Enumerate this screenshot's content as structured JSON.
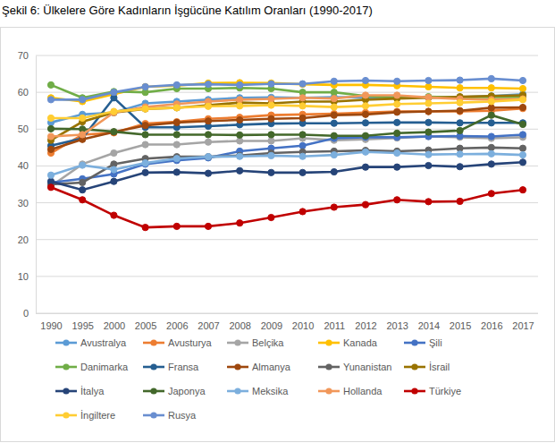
{
  "chart_data": {
    "type": "line",
    "title": "Şekil 6: Ülkelere Göre Kadınların İşgücüne Katılım Oranları (1990-2017)",
    "categories": [
      "1990",
      "1995",
      "2000",
      "2005",
      "2006",
      "2007",
      "2008",
      "2009",
      "2010",
      "2011",
      "2012",
      "2013",
      "2014",
      "2015",
      "2016",
      "2017"
    ],
    "ylim": [
      0,
      70
    ],
    "yticks": [
      0,
      10,
      20,
      30,
      40,
      50,
      60,
      70
    ],
    "grid": true,
    "legend": "bottom",
    "marker": "circle",
    "series": [
      {
        "name": "Avustralya",
        "color": "#5B9BD5",
        "values": [
          51.8,
          54.0,
          54.5,
          57.0,
          57.5,
          58.0,
          58.5,
          58.6,
          58.5,
          58.7,
          58.6,
          58.8,
          58.6,
          58.7,
          59.0,
          59.5
        ]
      },
      {
        "name": "Avusturya",
        "color": "#ED7D31",
        "values": [
          43.5,
          48.5,
          49.0,
          51.5,
          52.0,
          52.8,
          53.2,
          53.8,
          54.0,
          54.2,
          54.5,
          54.8,
          54.8,
          54.8,
          55.0,
          55.6
        ]
      },
      {
        "name": "Belçika",
        "color": "#A5A5A5",
        "values": [
          34.5,
          40.5,
          43.5,
          45.8,
          45.8,
          46.5,
          46.8,
          46.8,
          47.5,
          47.0,
          47.2,
          47.6,
          48.0,
          47.8,
          47.5,
          47.8
        ]
      },
      {
        "name": "Kanada",
        "color": "#FFC000",
        "values": [
          58.5,
          57.5,
          59.5,
          61.5,
          61.8,
          62.5,
          62.6,
          62.5,
          62.2,
          62.0,
          62.0,
          61.8,
          61.5,
          61.2,
          61.2,
          61.0
        ]
      },
      {
        "name": "Şili",
        "color": "#4472C4",
        "values": [
          35.5,
          36.5,
          37.8,
          40.5,
          41.5,
          42.2,
          44.0,
          44.8,
          45.5,
          47.5,
          47.8,
          47.8,
          48.0,
          48.1,
          48.0,
          48.5
        ]
      },
      {
        "name": "Danimarka",
        "color": "#70AD47",
        "values": [
          62.0,
          58.5,
          60.2,
          60.0,
          61.0,
          61.0,
          61.2,
          61.0,
          60.0,
          60.0,
          59.0,
          58.5,
          58.8,
          58.6,
          58.8,
          58.7
        ]
      },
      {
        "name": "Fransa",
        "color": "#255E91",
        "values": [
          45.5,
          47.5,
          58.5,
          50.5,
          50.5,
          50.8,
          51.2,
          51.5,
          51.6,
          51.6,
          51.7,
          51.8,
          51.8,
          51.7,
          51.7,
          51.7
        ]
      },
      {
        "name": "Almanya",
        "color": "#9E480E",
        "values": [
          44.5,
          47.2,
          49.2,
          51.0,
          51.8,
          52.2,
          52.5,
          52.8,
          53.0,
          53.8,
          54.0,
          54.6,
          54.8,
          55.0,
          55.8,
          55.9
        ]
      },
      {
        "name": "Yunanistan",
        "color": "#636363",
        "values": [
          35.0,
          35.5,
          40.5,
          42.0,
          42.5,
          42.5,
          42.8,
          43.5,
          43.8,
          44.0,
          44.2,
          44.0,
          44.3,
          44.8,
          45.0,
          44.8
        ]
      },
      {
        "name": "İsrail",
        "color": "#997300",
        "values": [
          47.0,
          52.0,
          54.5,
          55.5,
          55.8,
          56.5,
          57.2,
          57.0,
          57.5,
          57.5,
          58.0,
          58.3,
          58.5,
          58.8,
          59.0,
          59.2
        ]
      },
      {
        "name": "İtalya",
        "color": "#264478",
        "values": [
          35.8,
          33.5,
          35.8,
          38.2,
          38.3,
          38.0,
          38.7,
          38.2,
          38.2,
          38.4,
          39.7,
          39.7,
          40.1,
          39.8,
          40.5,
          41.0
        ]
      },
      {
        "name": "Japonya",
        "color": "#43682B",
        "values": [
          50.1,
          50.0,
          49.3,
          48.5,
          48.5,
          48.5,
          48.4,
          48.5,
          48.5,
          48.2,
          48.2,
          48.9,
          49.2,
          49.6,
          53.8,
          51.3
        ]
      },
      {
        "name": "Meksika",
        "color": "#7CAFDD",
        "values": [
          37.5,
          40.2,
          39.0,
          40.8,
          42.0,
          42.5,
          42.6,
          42.8,
          42.6,
          43.0,
          43.8,
          43.5,
          43.1,
          43.2,
          43.3,
          43.0
        ]
      },
      {
        "name": "Hollanda",
        "color": "#F1975A",
        "values": [
          48.0,
          48.5,
          54.5,
          56.0,
          56.8,
          57.5,
          58.0,
          58.2,
          58.5,
          58.3,
          59.2,
          59.2,
          58.6,
          58.2,
          58.0,
          58.2
        ]
      },
      {
        "name": "Türkiye",
        "color": "#C00000",
        "values": [
          34.2,
          30.8,
          26.6,
          23.3,
          23.6,
          23.6,
          24.5,
          26.0,
          27.6,
          28.8,
          29.5,
          30.8,
          30.3,
          30.4,
          32.5,
          33.5
        ]
      },
      {
        "name": "İngiltere",
        "color": "#FFCD33",
        "values": [
          53.0,
          53.0,
          54.8,
          55.5,
          55.8,
          56.2,
          56.3,
          56.5,
          56.3,
          56.0,
          56.3,
          56.8,
          57.0,
          57.2,
          57.5,
          58.0
        ]
      },
      {
        "name": "Rusya",
        "color": "#698ED0",
        "values": [
          58.0,
          58.0,
          60.0,
          61.5,
          62.0,
          62.2,
          62.0,
          62.3,
          62.3,
          63.0,
          63.2,
          63.0,
          63.2,
          63.3,
          63.7,
          63.2
        ]
      }
    ]
  }
}
